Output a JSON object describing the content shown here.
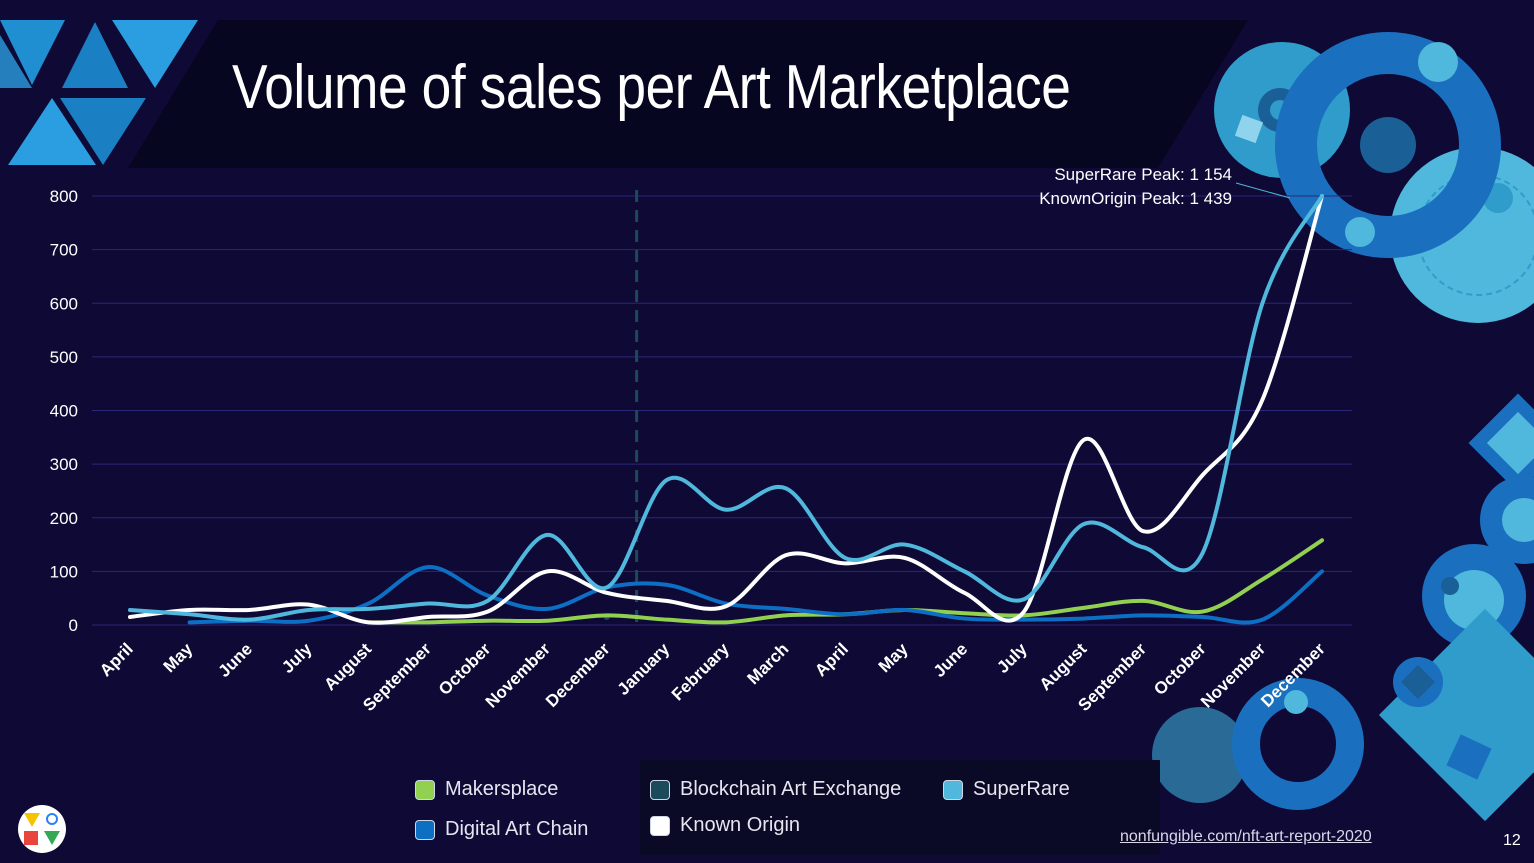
{
  "header": {
    "title": "Volume of sales per Art Marketplace"
  },
  "footer": {
    "link": "nonfungible.com/nft-art-report-2020",
    "page_number": "12"
  },
  "annotations": {
    "superrare_peak": "SuperRare Peak: 1 154",
    "knownorigin_peak": "KnownOrigin Peak: 1 439"
  },
  "legend": [
    {
      "label": "Makersplace",
      "color": "#92d050"
    },
    {
      "label": "Digital Art Chain",
      "color": "#0d6fc4"
    },
    {
      "label": "Blockchain Art Exchange",
      "color": "#1b4a5a"
    },
    {
      "label": "Known Origin",
      "color": "#ffffff"
    },
    {
      "label": "SuperRare",
      "color": "#4fb8dc"
    }
  ],
  "chart_data": {
    "type": "line",
    "title": "Volume of sales per Art Marketplace",
    "categories": [
      "April",
      "May",
      "June",
      "July",
      "August",
      "September",
      "October",
      "November",
      "December",
      "January",
      "February",
      "March",
      "April",
      "May",
      "June",
      "July",
      "August",
      "September",
      "October",
      "November",
      "December"
    ],
    "ylim": [
      0,
      800
    ],
    "yticks": [
      0,
      100,
      200,
      300,
      400,
      500,
      600,
      700,
      800
    ],
    "grid": true,
    "year_divider_after": "December",
    "legend_position": "bottom",
    "series": [
      {
        "name": "SuperRare",
        "color": "#4fb8dc",
        "values": [
          28,
          20,
          10,
          28,
          30,
          40,
          45,
          168,
          70,
          270,
          215,
          255,
          125,
          150,
          100,
          48,
          188,
          145,
          135,
          600,
          1154
        ]
      },
      {
        "name": "Known Origin",
        "color": "#ffffff",
        "values": [
          15,
          28,
          28,
          38,
          5,
          15,
          25,
          100,
          60,
          45,
          35,
          130,
          115,
          125,
          60,
          25,
          345,
          175,
          280,
          420,
          1439
        ]
      },
      {
        "name": "Digital Art Chain",
        "color": "#0d6fc4",
        "values": [
          null,
          5,
          8,
          8,
          40,
          108,
          55,
          30,
          70,
          75,
          40,
          30,
          20,
          28,
          12,
          10,
          12,
          18,
          15,
          10,
          100
        ]
      },
      {
        "name": "Makersplace",
        "color": "#92d050",
        "values": [
          null,
          null,
          null,
          null,
          5,
          5,
          8,
          8,
          18,
          10,
          5,
          18,
          20,
          28,
          22,
          18,
          32,
          45,
          25,
          85,
          158
        ]
      },
      {
        "name": "Blockchain Art Exchange",
        "color": "#1b4a5a",
        "values": [
          null,
          null,
          null,
          null,
          null,
          null,
          null,
          null,
          15,
          null,
          null,
          null,
          null,
          null,
          null,
          null,
          null,
          null,
          null,
          null,
          null
        ]
      }
    ]
  }
}
